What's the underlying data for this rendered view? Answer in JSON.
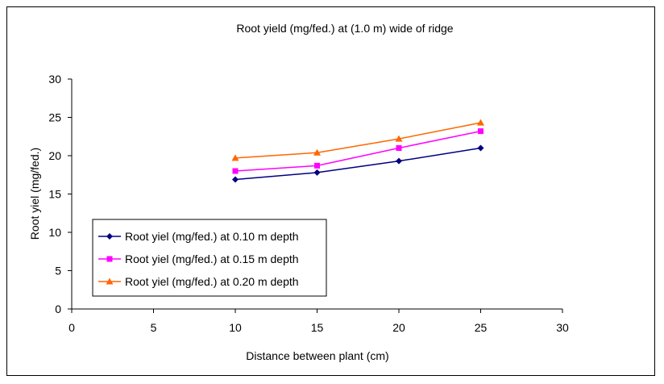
{
  "chart_data": {
    "type": "line",
    "title": "Root yield (mg/fed.) at (1.0 m) wide of ridge",
    "xlabel": "Distance between plant (cm)",
    "ylabel": "Root yiel (mg/fed.)",
    "xlim": [
      0,
      30
    ],
    "ylim": [
      0,
      30
    ],
    "xticks": [
      0,
      5,
      10,
      15,
      20,
      25,
      30
    ],
    "yticks": [
      0,
      5,
      10,
      15,
      20,
      25,
      30
    ],
    "grid": false,
    "legend_position": "bottom-left",
    "x": [
      10,
      15,
      20,
      25
    ],
    "series": [
      {
        "name": "Root yiel (mg/fed.) at 0.10 m depth",
        "values": [
          16.9,
          17.8,
          19.3,
          21.0
        ],
        "color": "#000080",
        "marker": "diamond"
      },
      {
        "name": "Root yiel (mg/fed.) at 0.15 m depth",
        "values": [
          18.0,
          18.7,
          21.0,
          23.2
        ],
        "color": "#FF00FF",
        "marker": "square"
      },
      {
        "name": "Root yiel (mg/fed.) at 0.20 m depth",
        "values": [
          19.7,
          20.4,
          22.2,
          24.3
        ],
        "color": "#FF6600",
        "marker": "triangle"
      }
    ]
  }
}
